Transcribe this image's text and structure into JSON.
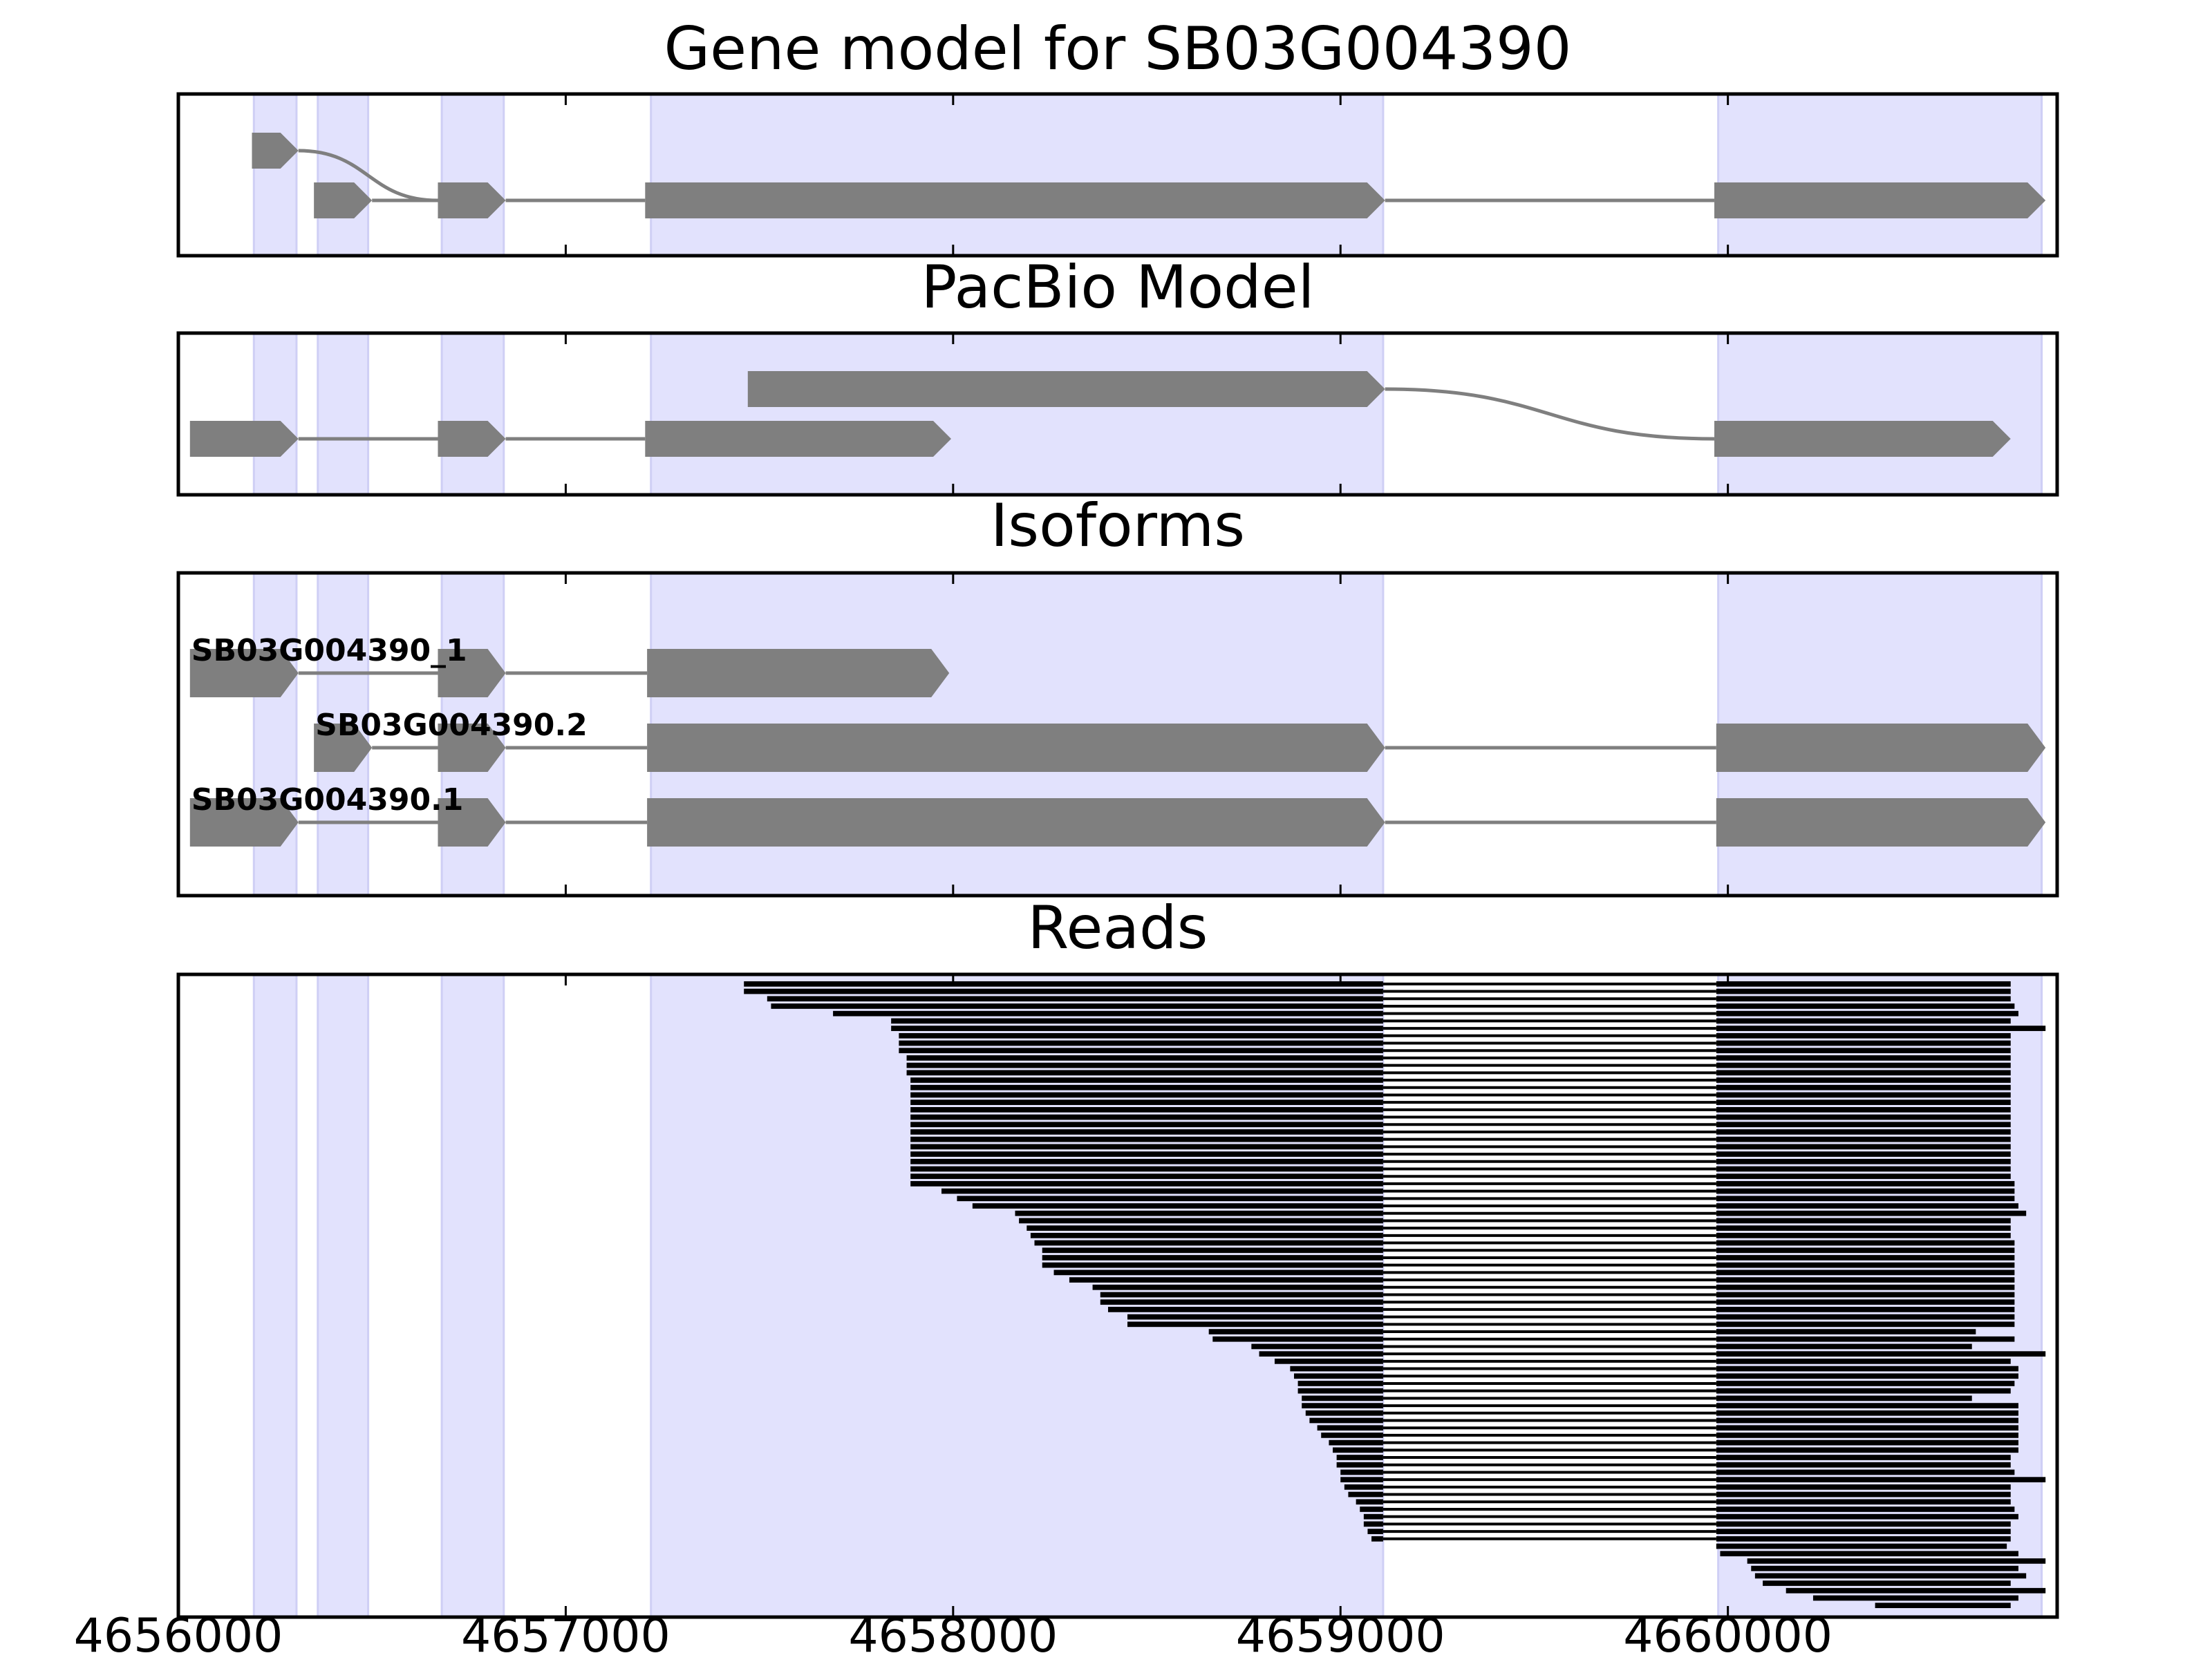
{
  "chart_data": {
    "type": "gene_track",
    "x_range": [
      4656000,
      4660850
    ],
    "x_ticks": [
      4656000,
      4657000,
      4658000,
      4659000,
      4660000
    ],
    "x_tick_labels": [
      "4656000",
      "4657000",
      "4658000",
      "4659000",
      "4660000"
    ],
    "colors": {
      "shade": "#e2e2fd",
      "shade_edge": "#cfcff5",
      "feature": "#7f7f7f",
      "read": "#000000",
      "frame": "#000000"
    },
    "shaded_regions": [
      [
        4656195,
        4656305
      ],
      [
        4656360,
        4656490
      ],
      [
        4656680,
        4656840
      ],
      [
        4657220,
        4659110
      ],
      [
        4659975,
        4660810
      ]
    ],
    "panels": [
      {
        "title": "Gene model for SB03G004390",
        "kind": "graph",
        "rows": 2,
        "nodes": [
          {
            "start": 4656190,
            "end": 4656310,
            "row": 0
          },
          {
            "start": 4656350,
            "end": 4656500,
            "row": 1
          },
          {
            "start": 4656670,
            "end": 4656845,
            "row": 1
          },
          {
            "start": 4657205,
            "end": 4659115,
            "row": 1
          },
          {
            "start": 4659965,
            "end": 4660820,
            "row": 1
          }
        ],
        "edges": [
          [
            0,
            2
          ],
          [
            1,
            2
          ],
          [
            2,
            3
          ],
          [
            3,
            4
          ]
        ]
      },
      {
        "title": "PacBio Model",
        "kind": "graph",
        "rows": 2,
        "nodes": [
          {
            "start": 4656030,
            "end": 4656310,
            "row": 1
          },
          {
            "start": 4656670,
            "end": 4656845,
            "row": 1
          },
          {
            "start": 4657205,
            "end": 4657995,
            "row": 1
          },
          {
            "start": 4657470,
            "end": 4659115,
            "row": 0
          },
          {
            "start": 4659965,
            "end": 4660730,
            "row": 1
          }
        ],
        "edges": [
          [
            0,
            1
          ],
          [
            1,
            2
          ],
          [
            3,
            4
          ]
        ]
      },
      {
        "title": "Isoforms",
        "kind": "isoforms",
        "isoforms": [
          {
            "name": "SB03G004390_1",
            "exons": [
              [
                4656030,
                4656310
              ],
              [
                4656670,
                4656845
              ],
              [
                4657210,
                4657990
              ]
            ]
          },
          {
            "name": "SB03G004390.2",
            "exons": [
              [
                4656350,
                4656500
              ],
              [
                4656670,
                4656845
              ],
              [
                4657210,
                4659115
              ],
              [
                4659970,
                4660820
              ]
            ]
          },
          {
            "name": "SB03G004390.1",
            "exons": [
              [
                4656030,
                4656310
              ],
              [
                4656670,
                4656845
              ],
              [
                4657210,
                4659115
              ],
              [
                4659970,
                4660820
              ]
            ]
          }
        ]
      },
      {
        "title": "Reads",
        "kind": "reads",
        "intron": [
          4659110,
          4659970
        ],
        "reads": [
          [
            4657460,
            4660730
          ],
          [
            4657460,
            4660730
          ],
          [
            4657520,
            4660730
          ],
          [
            4657530,
            4660740
          ],
          [
            4657690,
            4660750
          ],
          [
            4657840,
            4660730
          ],
          [
            4657840,
            4660820
          ],
          [
            4657860,
            4660730
          ],
          [
            4657860,
            4660730
          ],
          [
            4657860,
            4660730
          ],
          [
            4657880,
            4660730
          ],
          [
            4657880,
            4660730
          ],
          [
            4657880,
            4660730
          ],
          [
            4657890,
            4660730
          ],
          [
            4657890,
            4660730
          ],
          [
            4657890,
            4660730
          ],
          [
            4657890,
            4660730
          ],
          [
            4657890,
            4660730
          ],
          [
            4657890,
            4660730
          ],
          [
            4657890,
            4660730
          ],
          [
            4657890,
            4660730
          ],
          [
            4657890,
            4660730
          ],
          [
            4657890,
            4660730
          ],
          [
            4657890,
            4660730
          ],
          [
            4657890,
            4660730
          ],
          [
            4657890,
            4660730
          ],
          [
            4657890,
            4660730
          ],
          [
            4657890,
            4660740
          ],
          [
            4657970,
            4660740
          ],
          [
            4658010,
            4660740
          ],
          [
            4658050,
            4660750
          ],
          [
            4658160,
            4660770
          ],
          [
            4658170,
            4660730
          ],
          [
            4658190,
            4660730
          ],
          [
            4658200,
            4660730
          ],
          [
            4658210,
            4660740
          ],
          [
            4658230,
            4660740
          ],
          [
            4658230,
            4660740
          ],
          [
            4658230,
            4660740
          ],
          [
            4658260,
            4660740
          ],
          [
            4658300,
            4660740
          ],
          [
            4658360,
            4660740
          ],
          [
            4658380,
            4660740
          ],
          [
            4658380,
            4660740
          ],
          [
            4658400,
            4660740
          ],
          [
            4658450,
            4660740
          ],
          [
            4658450,
            4660740
          ],
          [
            4658660,
            4660640
          ],
          [
            4658670,
            4660740
          ],
          [
            4658770,
            4660630
          ],
          [
            4658790,
            4660820
          ],
          [
            4658830,
            4660730
          ],
          [
            4658870,
            4660750
          ],
          [
            4658880,
            4660750
          ],
          [
            4658890,
            4660740
          ],
          [
            4658890,
            4660730
          ],
          [
            4658900,
            4660630
          ],
          [
            4658900,
            4660750
          ],
          [
            4658910,
            4660750
          ],
          [
            4658920,
            4660750
          ],
          [
            4658940,
            4660750
          ],
          [
            4658950,
            4660750
          ],
          [
            4658970,
            4660750
          ],
          [
            4658980,
            4660750
          ],
          [
            4658990,
            4660730
          ],
          [
            4658990,
            4660730
          ],
          [
            4659000,
            4660740
          ],
          [
            4659000,
            4660820
          ],
          [
            4659010,
            4660730
          ],
          [
            4659020,
            4660730
          ],
          [
            4659040,
            4660730
          ],
          [
            4659050,
            4660740
          ],
          [
            4659060,
            4660750
          ],
          [
            4659060,
            4660730
          ],
          [
            4659070,
            4660730
          ],
          [
            4659080,
            4660730
          ],
          [
            4659970,
            4660720
          ],
          [
            4659980,
            4660750
          ],
          [
            4660050,
            4660820
          ],
          [
            4660060,
            4660750
          ],
          [
            4660070,
            4660770
          ],
          [
            4660090,
            4660730
          ],
          [
            4660150,
            4660820
          ],
          [
            4660220,
            4660750
          ],
          [
            4660380,
            4660730
          ]
        ]
      }
    ]
  }
}
